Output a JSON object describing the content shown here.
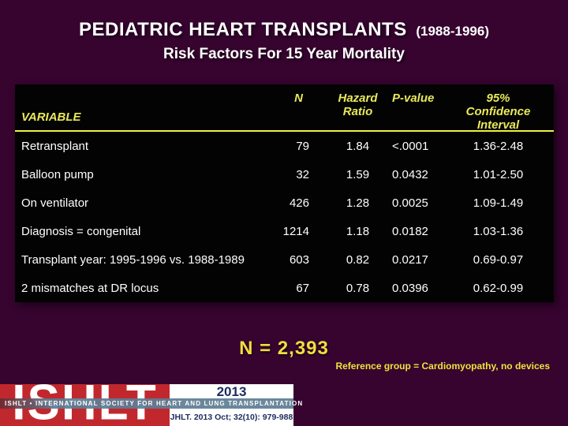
{
  "slide": {
    "title": "PEDIATRIC HEART TRANSPLANTS",
    "title_suffix": "(1988-1996)",
    "subtitle": "Risk Factors For 15 Year Mortality",
    "n_total": "N = 2,393",
    "reference_note": "Reference group = Cardiomyopathy, no devices"
  },
  "table": {
    "header": {
      "variable": "VARIABLE",
      "n": "N",
      "hazard_line1": "Hazard",
      "hazard_line2": "Ratio",
      "p_value": "P-value",
      "ci_line1": "95% Confidence",
      "ci_line2": "Interval"
    },
    "rows": [
      {
        "variable": "Retransplant",
        "n": "79",
        "hr": "1.84",
        "p": "<.0001",
        "ci": "1.36-2.48"
      },
      {
        "variable": "Balloon pump",
        "n": "32",
        "hr": "1.59",
        "p": "0.0432",
        "ci": "1.01-2.50"
      },
      {
        "variable": "On ventilator",
        "n": "426",
        "hr": "1.28",
        "p": "0.0025",
        "ci": "1.09-1.49"
      },
      {
        "variable": "Diagnosis = congenital",
        "n": "1214",
        "hr": "1.18",
        "p": "0.0182",
        "ci": "1.03-1.36"
      },
      {
        "variable": "Transplant year: 1995-1996 vs. 1988-1989",
        "n": "603",
        "hr": "0.82",
        "p": "0.0217",
        "ci": "0.69-0.97"
      },
      {
        "variable": "2 mismatches at DR locus",
        "n": "67",
        "hr": "0.78",
        "p": "0.0396",
        "ci": "0.62-0.99"
      }
    ]
  },
  "chart_data": {
    "type": "table",
    "title": "PEDIATRIC HEART TRANSPLANTS (1988-1996) — Risk Factors For 15 Year Mortality",
    "columns": [
      "VARIABLE",
      "N",
      "Hazard Ratio",
      "P-value",
      "95% Confidence Interval"
    ],
    "rows": [
      [
        "Retransplant",
        79,
        1.84,
        "<.0001",
        "1.36-2.48"
      ],
      [
        "Balloon pump",
        32,
        1.59,
        "0.0432",
        "1.01-2.50"
      ],
      [
        "On ventilator",
        426,
        1.28,
        "0.0025",
        "1.09-1.49"
      ],
      [
        "Diagnosis = congenital",
        1214,
        1.18,
        "0.0182",
        "1.03-1.36"
      ],
      [
        "Transplant year: 1995-1996 vs. 1988-1989",
        603,
        0.82,
        "0.0217",
        "0.69-0.97"
      ],
      [
        "2 mismatches at DR locus",
        67,
        0.78,
        "0.0396",
        "0.62-0.99"
      ]
    ],
    "notes": [
      "N = 2,393",
      "Reference group = Cardiomyopathy, no devices"
    ]
  },
  "footer": {
    "logo_acronym": "ISHLT",
    "logo_banner": "ISHLT • INTERNATIONAL SOCIETY FOR HEART AND LUNG TRANSPLANTATION",
    "logo_year": "2013",
    "citation": "JHLT. 2013 Oct; 32(10): 979-988"
  },
  "colors": {
    "background_purple": "#36042f",
    "table_background": "#030303",
    "header_yellow": "#e8e85c",
    "divider_yellow": "#f0f042",
    "accent_yellow": "#f2dd3f",
    "row_text": "#ffffff",
    "logo_red": "#c1282d",
    "logo_navy": "#1c2b5e",
    "logo_band_blue": "#5e7d94"
  }
}
